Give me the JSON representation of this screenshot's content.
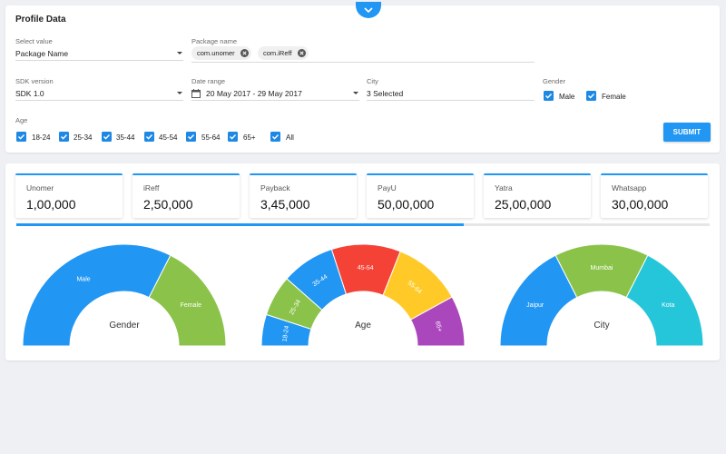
{
  "profile": {
    "title": "Profile Data",
    "select_value": {
      "label": "Select value",
      "value": "Package Name"
    },
    "package_name": {
      "label": "Package name",
      "chips": [
        "com.unomer",
        "com.iReff"
      ]
    },
    "sdk_version": {
      "label": "SDK version",
      "value": "SDK 1.0"
    },
    "date_range": {
      "label": "Date range",
      "value": "20 May 2017 - 29 May 2017"
    },
    "city": {
      "label": "City",
      "value": "3 Selected"
    },
    "gender": {
      "label": "Gender",
      "options": [
        "Male",
        "Female"
      ]
    },
    "age": {
      "label": "Age",
      "options": [
        "18-24",
        "25-34",
        "35-44",
        "45-54",
        "55-64",
        "65+",
        "All"
      ]
    },
    "submit_label": "SUBMIT"
  },
  "stats": [
    {
      "name": "Unomer",
      "value": "1,00,000"
    },
    {
      "name": "iReff",
      "value": "2,50,000"
    },
    {
      "name": "Payback",
      "value": "3,45,000"
    },
    {
      "name": "PayU",
      "value": "50,00,000"
    },
    {
      "name": "Yatra",
      "value": "25,00,000"
    },
    {
      "name": "Whatsapp",
      "value": "30,00,000"
    }
  ],
  "progress": 0.645,
  "gauges": [
    {
      "title": "Gender",
      "segments": [
        {
          "label": "Male",
          "value": 65,
          "color": "#2196f3"
        },
        {
          "label": "Female",
          "value": 35,
          "color": "#8bc34a"
        }
      ]
    },
    {
      "title": "Age",
      "segments": [
        {
          "label": "18-24",
          "value": 10,
          "color": "#2196f3"
        },
        {
          "label": "25-34",
          "value": 13,
          "color": "#8bc34a"
        },
        {
          "label": "35-44",
          "value": 17,
          "color": "#2196f3"
        },
        {
          "label": "45-54",
          "value": 22,
          "color": "#f44336"
        },
        {
          "label": "55-64",
          "value": 22,
          "color": "#ffca28"
        },
        {
          "label": "65+",
          "value": 16,
          "color": "#ab47bc"
        }
      ]
    },
    {
      "title": "City",
      "segments": [
        {
          "label": "Jaipur",
          "value": 35,
          "color": "#2196f3"
        },
        {
          "label": "Mumbai",
          "value": 30,
          "color": "#8bc34a"
        },
        {
          "label": "Kota",
          "value": 35,
          "color": "#26c6da"
        }
      ]
    }
  ]
}
